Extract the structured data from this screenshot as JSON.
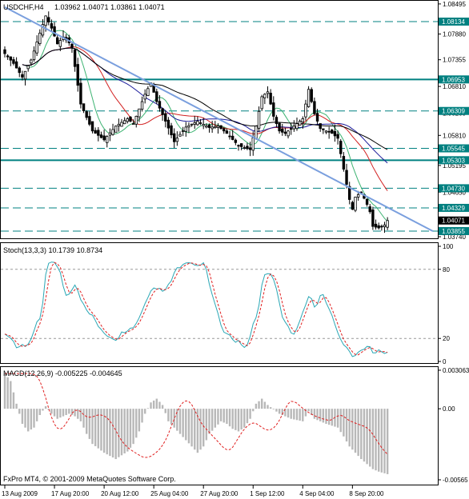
{
  "chart_data": [
    {
      "type": "candlestick",
      "title": "USDCHF,H4",
      "ohlc_text": "1.03962 1.04071 1.03861 1.04071",
      "ylim": [
        1.0374,
        1.0851
      ],
      "yticks": [
        "1.08495",
        "1.07880",
        "1.07355",
        "1.06810",
        "1.06260",
        "1.05810",
        "1.05195",
        "1.04650",
        "1.04050",
        "1.03740"
      ],
      "levels": [
        {
          "value": 1.08134,
          "label": "1.08134",
          "style": "dashed"
        },
        {
          "value": 1.06953,
          "label": "1.06953",
          "style": "solid"
        },
        {
          "value": 1.06309,
          "label": "1.06309",
          "style": "dashed"
        },
        {
          "value": 1.05545,
          "label": "1.05545",
          "style": "dashed"
        },
        {
          "value": 1.05303,
          "label": "1.05303",
          "style": "solid"
        },
        {
          "value": 1.0473,
          "label": "1.04730",
          "style": "dashed"
        },
        {
          "value": 1.04329,
          "label": "1.04329",
          "style": "dashed"
        },
        {
          "value": 1.03855,
          "label": "1.03855",
          "style": "dashed"
        }
      ],
      "current_price": "1.04071",
      "trendline": [
        [
          0,
          1.0843
        ],
        [
          73,
          1.0615
        ]
      ],
      "anchors": [
        [
          0,
          1.0748
        ],
        [
          3,
          1.0728
        ],
        [
          6,
          1.07
        ],
        [
          9,
          1.0735
        ],
        [
          12,
          1.079
        ],
        [
          14,
          1.0825
        ],
        [
          16,
          1.08
        ],
        [
          18,
          1.0768
        ],
        [
          20,
          1.0782
        ],
        [
          22,
          1.077
        ],
        [
          23,
          1.076
        ],
        [
          26,
          1.0645
        ],
        [
          30,
          1.059
        ],
        [
          34,
          1.0572
        ],
        [
          38,
          1.06
        ],
        [
          42,
          1.0615
        ],
        [
          44,
          1.0605
        ],
        [
          46,
          1.0635
        ],
        [
          48,
          1.0665
        ],
        [
          50,
          1.0688
        ],
        [
          52,
          1.065
        ],
        [
          55,
          1.061
        ],
        [
          58,
          1.0568
        ],
        [
          62,
          1.0598
        ],
        [
          66,
          1.061
        ],
        [
          70,
          1.0597
        ],
        [
          73,
          1.06
        ],
        [
          76,
          1.0585
        ],
        [
          80,
          1.056
        ],
        [
          84,
          1.0552
        ],
        [
          86,
          1.06
        ],
        [
          88,
          1.066
        ],
        [
          90,
          1.067
        ],
        [
          92,
          1.062
        ],
        [
          94,
          1.059
        ],
        [
          96,
          1.0585
        ],
        [
          99,
          1.06
        ],
        [
          102,
          1.0615
        ],
        [
          104,
          1.0675
        ],
        [
          106,
          1.0625
        ],
        [
          108,
          1.0595
        ],
        [
          112,
          1.0585
        ],
        [
          114,
          1.0575
        ],
        [
          116,
          1.0512
        ],
        [
          118,
          1.045
        ],
        [
          119,
          1.043
        ],
        [
          120,
          1.0455
        ],
        [
          122,
          1.0465
        ],
        [
          124,
          1.044
        ],
        [
          125,
          1.0425
        ],
        [
          126,
          1.0395
        ],
        [
          128,
          1.0392
        ],
        [
          130,
          1.0398
        ],
        [
          131,
          1.0407
        ]
      ]
    },
    {
      "type": "line",
      "title": "Stoch(13,3,3) 10.1739 10.8734",
      "ylim": [
        0,
        100
      ],
      "yticks": [
        "100",
        "80",
        "20",
        "0"
      ],
      "levels": [
        80,
        20
      ],
      "anchors": [
        [
          0,
          22
        ],
        [
          4,
          12
        ],
        [
          8,
          18
        ],
        [
          12,
          40
        ],
        [
          14,
          85
        ],
        [
          16,
          90
        ],
        [
          18,
          80
        ],
        [
          20,
          60
        ],
        [
          22,
          62
        ],
        [
          24,
          70
        ],
        [
          26,
          48
        ],
        [
          30,
          36
        ],
        [
          34,
          22
        ],
        [
          38,
          20
        ],
        [
          42,
          28
        ],
        [
          46,
          38
        ],
        [
          50,
          68
        ],
        [
          52,
          62
        ],
        [
          54,
          62
        ],
        [
          56,
          70
        ],
        [
          58,
          80
        ],
        [
          60,
          82
        ],
        [
          64,
          85
        ],
        [
          68,
          84
        ],
        [
          70,
          60
        ],
        [
          74,
          28
        ],
        [
          78,
          18
        ],
        [
          82,
          12
        ],
        [
          86,
          40
        ],
        [
          88,
          72
        ],
        [
          90,
          78
        ],
        [
          92,
          70
        ],
        [
          94,
          45
        ],
        [
          96,
          32
        ],
        [
          98,
          25
        ],
        [
          100,
          28
        ],
        [
          102,
          48
        ],
        [
          104,
          58
        ],
        [
          106,
          45
        ],
        [
          108,
          60
        ],
        [
          110,
          45
        ],
        [
          112,
          35
        ],
        [
          114,
          25
        ],
        [
          116,
          15
        ],
        [
          118,
          8
        ],
        [
          120,
          5
        ],
        [
          122,
          12
        ],
        [
          124,
          15
        ],
        [
          126,
          8
        ],
        [
          128,
          10
        ],
        [
          131,
          10
        ]
      ],
      "smooth": 3
    },
    {
      "type": "histogram",
      "title": "MACD(12,26,9) -0.005225 -0.004645",
      "ylim": [
        -0.00565,
        0.00306
      ],
      "yticks": [
        "0.003063",
        "0.00",
        "-0.00565"
      ],
      "footer": "FxPro MT4, © 2001-2009 MetaQuotes Software Corp.",
      "anchors": [
        [
          0,
          0.0028
        ],
        [
          2,
          0.0022
        ],
        [
          4,
          0.0004
        ],
        [
          6,
          -0.0012
        ],
        [
          8,
          -0.0018
        ],
        [
          10,
          -0.0015
        ],
        [
          12,
          -0.0005
        ],
        [
          14,
          0.0002
        ],
        [
          16,
          -0.0004
        ],
        [
          18,
          -0.0008
        ],
        [
          20,
          -0.0006
        ],
        [
          22,
          -0.0004
        ],
        [
          24,
          -0.0006
        ],
        [
          26,
          -0.001
        ],
        [
          28,
          -0.002
        ],
        [
          30,
          -0.0028
        ],
        [
          34,
          -0.0035
        ],
        [
          38,
          -0.004
        ],
        [
          42,
          -0.0034
        ],
        [
          44,
          -0.0028
        ],
        [
          46,
          -0.0018
        ],
        [
          48,
          -0.0004
        ],
        [
          50,
          0.0005
        ],
        [
          52,
          0.0008
        ],
        [
          54,
          0.0003
        ],
        [
          56,
          -0.001
        ],
        [
          60,
          -0.002
        ],
        [
          64,
          -0.003
        ],
        [
          66,
          -0.0035
        ],
        [
          68,
          -0.003
        ],
        [
          70,
          -0.002
        ],
        [
          72,
          -0.0015
        ],
        [
          74,
          -0.001
        ],
        [
          76,
          -0.0012
        ],
        [
          78,
          -0.0016
        ],
        [
          80,
          -0.0018
        ],
        [
          82,
          -0.0015
        ],
        [
          84,
          -0.0008
        ],
        [
          86,
          0.0004
        ],
        [
          88,
          0.0008
        ],
        [
          90,
          0.0003
        ],
        [
          94,
          -0.0004
        ],
        [
          98,
          -0.0008
        ],
        [
          102,
          -0.001
        ],
        [
          104,
          -0.0002
        ],
        [
          106,
          -0.0008
        ],
        [
          110,
          -0.0012
        ],
        [
          114,
          -0.0015
        ],
        [
          116,
          -0.0022
        ],
        [
          118,
          -0.003
        ],
        [
          122,
          -0.004
        ],
        [
          126,
          -0.0048
        ],
        [
          128,
          -0.005
        ],
        [
          131,
          -0.0052
        ]
      ],
      "signal_lag": 9
    }
  ],
  "x_labels": [
    "13 Aug 2009",
    "17 Aug 20:00",
    "20 Aug 12:00",
    "25 Aug 04:00",
    "27 Aug 20:00",
    "1 Sep 12:00",
    "4 Sep 04:00",
    "8 Sep 20:00"
  ],
  "x_label_index": [
    0,
    17,
    34,
    51,
    68,
    85,
    102,
    119
  ],
  "bar_count": 132,
  "colors": {
    "background": "#ffffff",
    "candle": "#000000",
    "grid_line": "#008080",
    "trendline": "#7a9fde",
    "ma_fast": "#3cb371",
    "ma_mid": "#d22020",
    "ma_slow": "#1a1a9a",
    "ma_long": "#000000",
    "stoch_main": "#2aa7b5",
    "stoch_signal": "#e02020",
    "macd_hist": "#b8b8b8",
    "macd_signal": "#e02020"
  }
}
